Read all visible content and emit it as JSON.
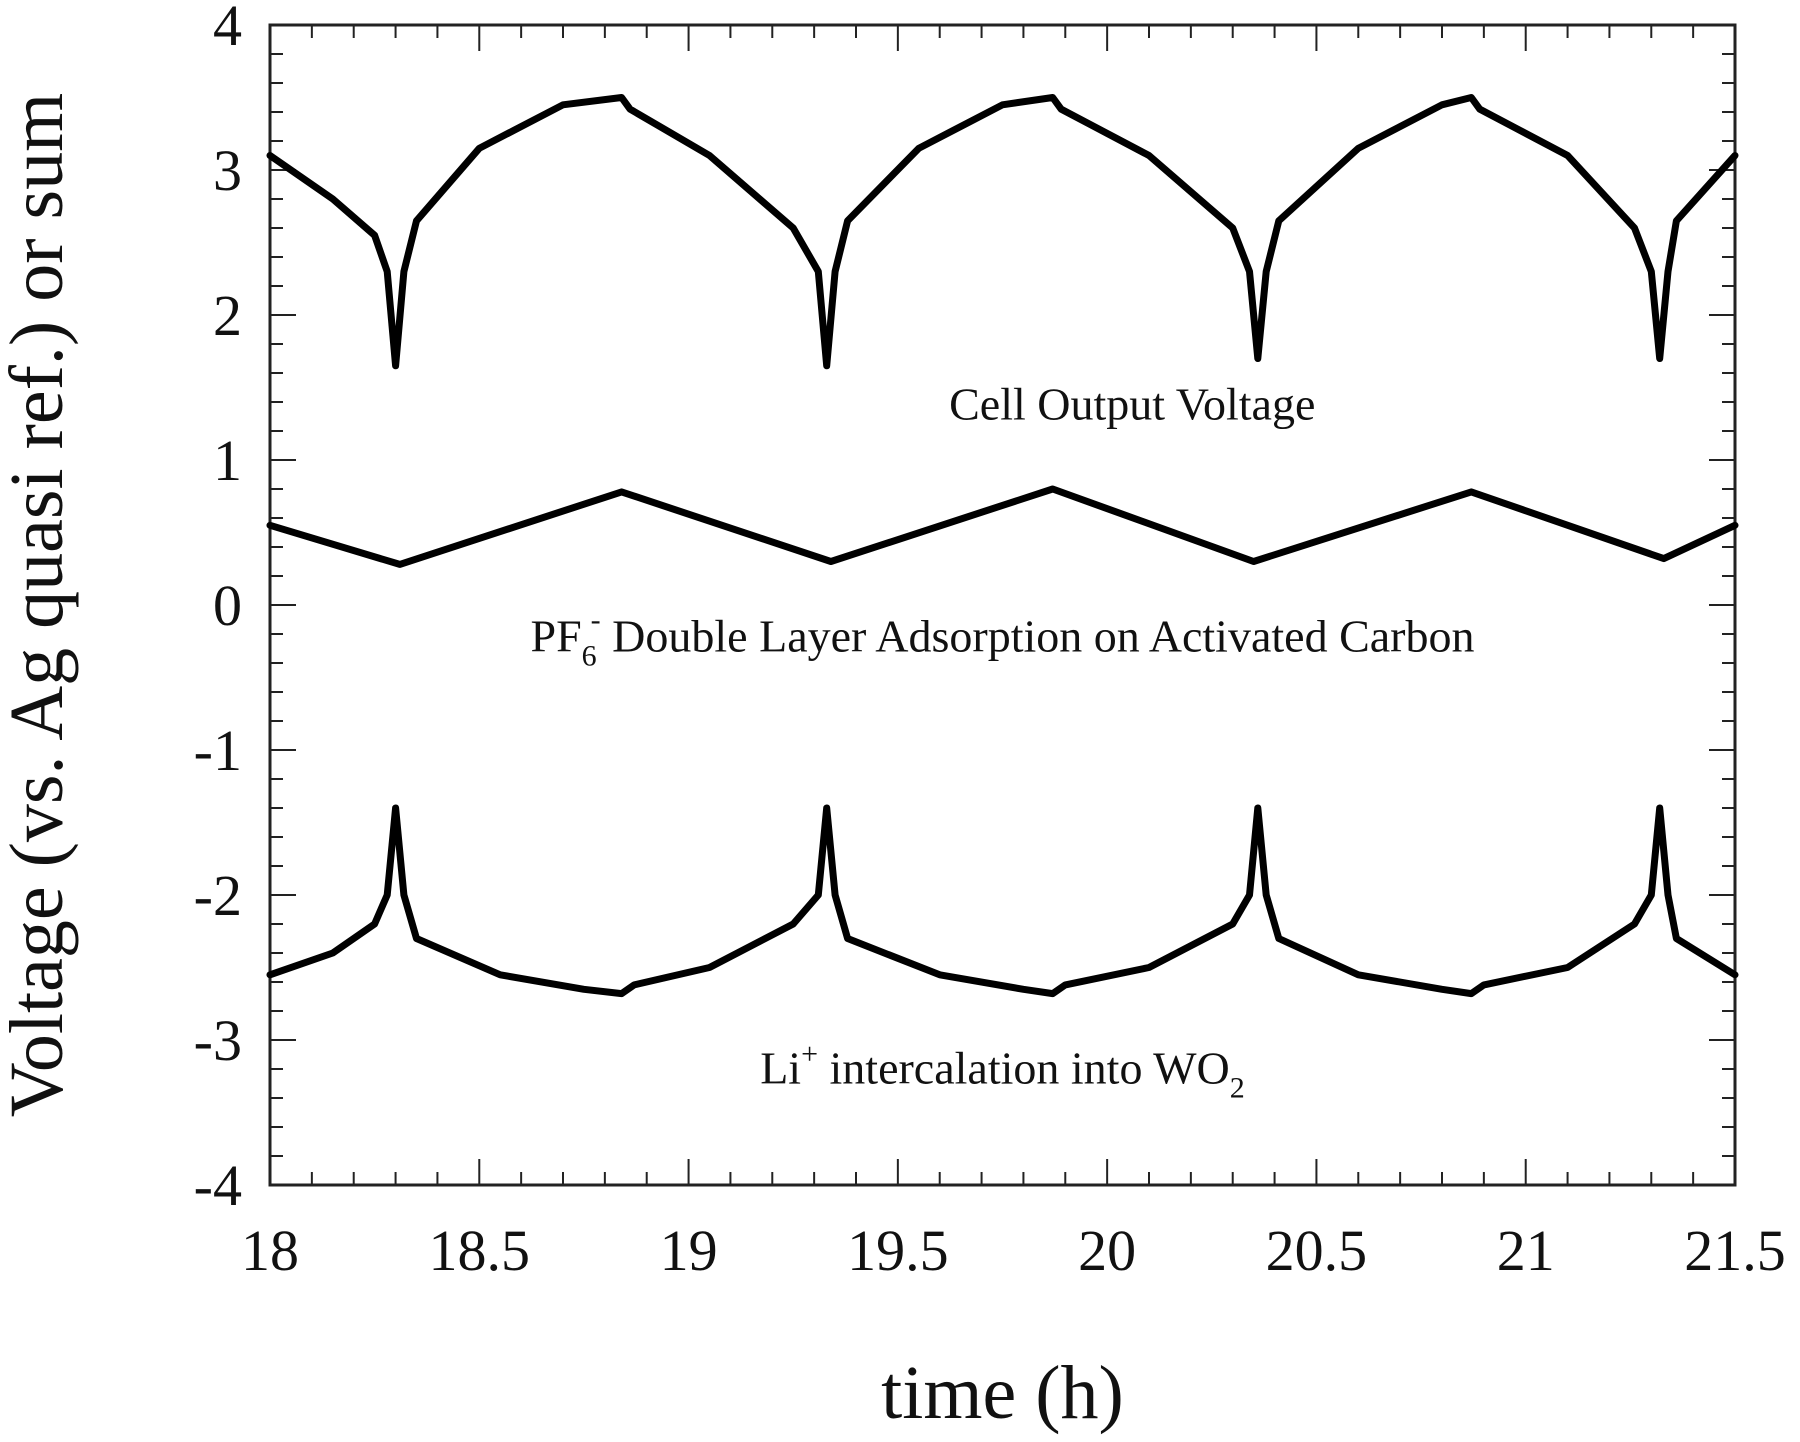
{
  "chart_data": {
    "type": "line",
    "xlabel": "time (h)",
    "ylabel": "Voltage (vs. Ag quasi ref.) or sum",
    "xlim": [
      18,
      21.5
    ],
    "ylim": [
      -4,
      4
    ],
    "x_ticks": [
      "18",
      "18.5",
      "19",
      "19.5",
      "20",
      "20.5",
      "21",
      "21.5"
    ],
    "y_ticks": [
      "-4",
      "-3",
      "-2",
      "-1",
      "0",
      "1",
      "2",
      "3",
      "4"
    ],
    "grid": false,
    "line_color": "#000000",
    "annotations": {
      "cell": {
        "text": "Cell Output Voltage",
        "x": 20.06,
        "y": 1.28
      },
      "pf6": {
        "text1": "PF",
        "sub": "6",
        "sup": "-",
        "text2": " Double Layer Adsorption on Activated Carbon",
        "x": 19.75,
        "y": -0.32
      },
      "li": {
        "text1": "Li",
        "sup": "+",
        "text2": " intercalation into WO",
        "sub": "2",
        "x": 19.75,
        "y": -3.3
      }
    },
    "series": [
      {
        "name": "Cell Output Voltage",
        "x": [
          18.0,
          18.15,
          18.25,
          18.28,
          18.3,
          18.32,
          18.35,
          18.5,
          18.7,
          18.84,
          18.86,
          19.05,
          19.25,
          19.31,
          19.33,
          19.35,
          19.38,
          19.55,
          19.75,
          19.87,
          19.89,
          20.1,
          20.3,
          20.34,
          20.36,
          20.38,
          20.41,
          20.6,
          20.8,
          20.87,
          20.89,
          21.1,
          21.26,
          21.3,
          21.32,
          21.34,
          21.36,
          21.5
        ],
        "y": [
          3.1,
          2.8,
          2.55,
          2.3,
          1.65,
          2.3,
          2.65,
          3.15,
          3.45,
          3.5,
          3.42,
          3.1,
          2.6,
          2.3,
          1.65,
          2.3,
          2.65,
          3.15,
          3.45,
          3.5,
          3.42,
          3.1,
          2.6,
          2.3,
          1.7,
          2.3,
          2.65,
          3.15,
          3.45,
          3.5,
          3.42,
          3.1,
          2.6,
          2.3,
          1.7,
          2.3,
          2.65,
          3.1
        ]
      },
      {
        "name": "PF6- Double Layer Adsorption on Activated Carbon",
        "x": [
          18.0,
          18.31,
          18.84,
          19.34,
          19.87,
          20.35,
          20.87,
          21.33,
          21.5
        ],
        "y": [
          0.55,
          0.28,
          0.78,
          0.3,
          0.8,
          0.3,
          0.78,
          0.32,
          0.55
        ]
      },
      {
        "name": "Li+ intercalation into WO2",
        "x": [
          18.0,
          18.15,
          18.25,
          18.28,
          18.3,
          18.32,
          18.35,
          18.55,
          18.75,
          18.84,
          18.87,
          19.05,
          19.25,
          19.31,
          19.33,
          19.35,
          19.38,
          19.6,
          19.8,
          19.87,
          19.9,
          20.1,
          20.3,
          20.34,
          20.36,
          20.38,
          20.41,
          20.6,
          20.8,
          20.87,
          20.9,
          21.1,
          21.26,
          21.3,
          21.32,
          21.34,
          21.36,
          21.5
        ],
        "y": [
          -2.55,
          -2.4,
          -2.2,
          -2.0,
          -1.4,
          -2.0,
          -2.3,
          -2.55,
          -2.65,
          -2.68,
          -2.62,
          -2.5,
          -2.2,
          -2.0,
          -1.4,
          -2.0,
          -2.3,
          -2.55,
          -2.65,
          -2.68,
          -2.62,
          -2.5,
          -2.2,
          -2.0,
          -1.4,
          -2.0,
          -2.3,
          -2.55,
          -2.65,
          -2.68,
          -2.62,
          -2.5,
          -2.2,
          -2.0,
          -1.4,
          -2.0,
          -2.3,
          -2.55
        ]
      }
    ]
  }
}
